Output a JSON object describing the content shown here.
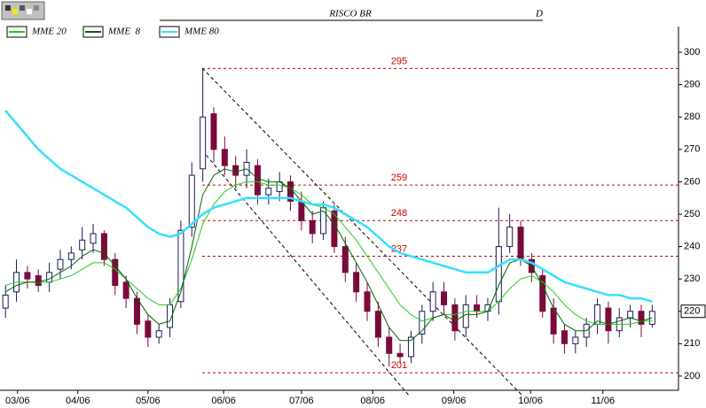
{
  "chart_data": {
    "type": "candlestick",
    "title": "RISCO BR",
    "period": "D",
    "xlim": [
      -0.5,
      61.4
    ],
    "xticks": [
      {
        "value": 1.1,
        "label": "03/06"
      },
      {
        "value": 6.6,
        "label": "04/06"
      },
      {
        "value": 13.0,
        "label": "05/06"
      },
      {
        "value": 19.9,
        "label": "06/06"
      },
      {
        "value": 27.0,
        "label": "07/06"
      },
      {
        "value": 33.5,
        "label": "08/06"
      },
      {
        "value": 40.9,
        "label": "09/06"
      },
      {
        "value": 47.9,
        "label": "10/06"
      },
      {
        "value": 54.5,
        "label": "11/06"
      }
    ],
    "ylim": [
      195.6,
      307.4
    ],
    "yticks": [
      200,
      210,
      220,
      230,
      240,
      250,
      260,
      270,
      280,
      290,
      300
    ],
    "up_color": "#ffffff",
    "down_color": "#7a0a3c",
    "open": [
      221,
      226,
      232,
      231,
      229,
      233,
      236,
      239,
      241,
      244,
      236,
      229,
      224,
      217,
      212,
      215,
      223,
      246,
      264,
      281,
      270,
      265,
      262,
      265,
      256,
      257,
      260,
      254,
      248,
      244,
      251,
      240,
      232,
      226,
      220,
      212,
      207,
      206,
      213,
      220,
      226,
      222,
      215,
      222,
      220,
      223,
      240,
      246,
      236,
      231,
      221,
      214,
      210,
      212,
      216,
      221,
      214,
      218,
      220,
      216
    ],
    "high": [
      228,
      236,
      234,
      233,
      235,
      239,
      240,
      246,
      247,
      245,
      238,
      231,
      226,
      219,
      216,
      224,
      248,
      266,
      295,
      283,
      274,
      268,
      270,
      267,
      261,
      263,
      262,
      257,
      251,
      254,
      253,
      243,
      235,
      229,
      223,
      215,
      210,
      214,
      222,
      229,
      229,
      224,
      225,
      225,
      224,
      252,
      250,
      248,
      238,
      233,
      224,
      216,
      214,
      218,
      224,
      223,
      221,
      222,
      222,
      222
    ],
    "low": [
      218,
      223,
      227,
      226,
      226,
      230,
      233,
      236,
      238,
      234,
      225,
      221,
      213,
      209,
      210,
      212,
      221,
      243,
      260,
      266,
      262,
      258,
      258,
      253,
      253,
      254,
      251,
      245,
      241,
      242,
      238,
      229,
      223,
      217,
      209,
      203,
      204,
      204,
      210,
      217,
      219,
      211,
      212,
      218,
      217,
      219,
      238,
      234,
      229,
      218,
      210,
      207,
      207,
      209,
      213,
      210,
      212,
      215,
      212,
      215
    ],
    "close": [
      225,
      232,
      230,
      228,
      232,
      236,
      238,
      242,
      244,
      236,
      228,
      224,
      216,
      212,
      214,
      222,
      245,
      262,
      280,
      270,
      265,
      262,
      266,
      256,
      258,
      260,
      254,
      248,
      244,
      252,
      240,
      232,
      226,
      220,
      212,
      207,
      206,
      212,
      220,
      226,
      222,
      214,
      222,
      220,
      222,
      240,
      246,
      236,
      232,
      220,
      213,
      210,
      212,
      216,
      222,
      214,
      218,
      220,
      216,
      220
    ],
    "series": [
      {
        "name": "MME 20",
        "color": "#22cc22",
        "values": [
          228,
          229,
          229,
          229,
          229,
          230,
          231,
          233,
          235,
          235,
          233,
          230,
          227,
          224,
          222,
          222,
          227,
          236,
          247,
          253,
          257,
          259,
          260,
          260,
          259,
          259,
          258,
          256,
          253,
          252,
          250,
          246,
          242,
          237,
          232,
          227,
          222,
          219,
          217,
          218,
          219,
          219,
          220,
          220,
          220,
          223,
          227,
          230,
          231,
          229,
          226,
          222,
          219,
          217,
          216,
          216,
          216,
          216,
          217,
          217
        ]
      },
      {
        "name": "MME  8",
        "color": "#006400",
        "values": [
          226,
          228,
          229,
          229,
          230,
          232,
          234,
          237,
          239,
          238,
          234,
          230,
          224,
          219,
          216,
          217,
          226,
          240,
          256,
          262,
          264,
          263,
          264,
          261,
          260,
          260,
          258,
          254,
          250,
          251,
          247,
          241,
          235,
          229,
          222,
          215,
          211,
          211,
          214,
          218,
          219,
          217,
          219,
          219,
          220,
          228,
          235,
          236,
          234,
          228,
          221,
          216,
          214,
          214,
          217,
          216,
          217,
          218,
          217,
          218
        ]
      },
      {
        "name": "MME 80",
        "color": "#33e0ff",
        "values": [
          282,
          278,
          274,
          270,
          267,
          264,
          262,
          260,
          258,
          256,
          254,
          252,
          249,
          246,
          244,
          243,
          244,
          247,
          250,
          252,
          253,
          254,
          255,
          255,
          255,
          255,
          255,
          254,
          253,
          253,
          252,
          250,
          248,
          246,
          243,
          240,
          238,
          237,
          236,
          235,
          234,
          233,
          232,
          232,
          232,
          234,
          236,
          236,
          235,
          233,
          231,
          229,
          228,
          227,
          226,
          225,
          225,
          224,
          224,
          223
        ]
      }
    ],
    "levels": [
      295,
      259,
      248,
      237,
      201
    ],
    "level_color": "#cc0000",
    "last_value": 220
  }
}
